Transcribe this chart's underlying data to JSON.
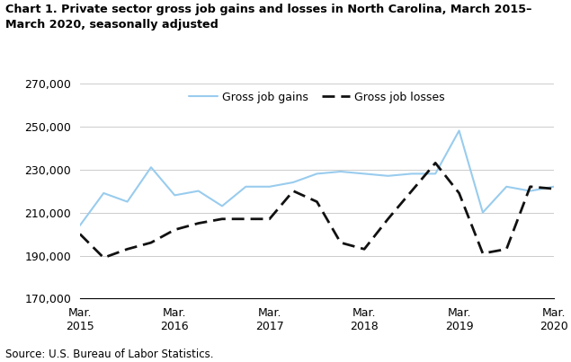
{
  "title_line1": "Chart 1. Private sector gross job gains and losses in North Carolina, March 2015–",
  "title_line2": "March 2020, seasonally adjusted",
  "source": "Source: U.S. Bureau of Labor Statistics.",
  "ylim": [
    170000,
    270000
  ],
  "yticks": [
    170000,
    190000,
    210000,
    230000,
    250000,
    270000
  ],
  "xtick_positions": [
    0,
    4,
    8,
    12,
    16,
    20
  ],
  "xlabel_labels": [
    "Mar.\n2015",
    "Mar.\n2016",
    "Mar.\n2017",
    "Mar.\n2018",
    "Mar.\n2019",
    "Mar.\n2020"
  ],
  "gains": [
    204000,
    219000,
    215000,
    231000,
    218000,
    220000,
    213000,
    222000,
    222000,
    224000,
    228000,
    229000,
    228000,
    227000,
    228000,
    228000,
    248000,
    210000,
    222000,
    220000,
    222000
  ],
  "losses": [
    200000,
    189000,
    193000,
    196000,
    202000,
    205000,
    207000,
    207000,
    207000,
    220000,
    215000,
    196000,
    193000,
    207000,
    220000,
    233000,
    219000,
    191000,
    193000,
    222000,
    221000
  ],
  "gains_color": "#99ccee",
  "losses_color": "#111111",
  "background_color": "#ffffff",
  "grid_color": "#cccccc",
  "legend_gains_label": "Gross job gains",
  "legend_losses_label": "Gross job losses"
}
